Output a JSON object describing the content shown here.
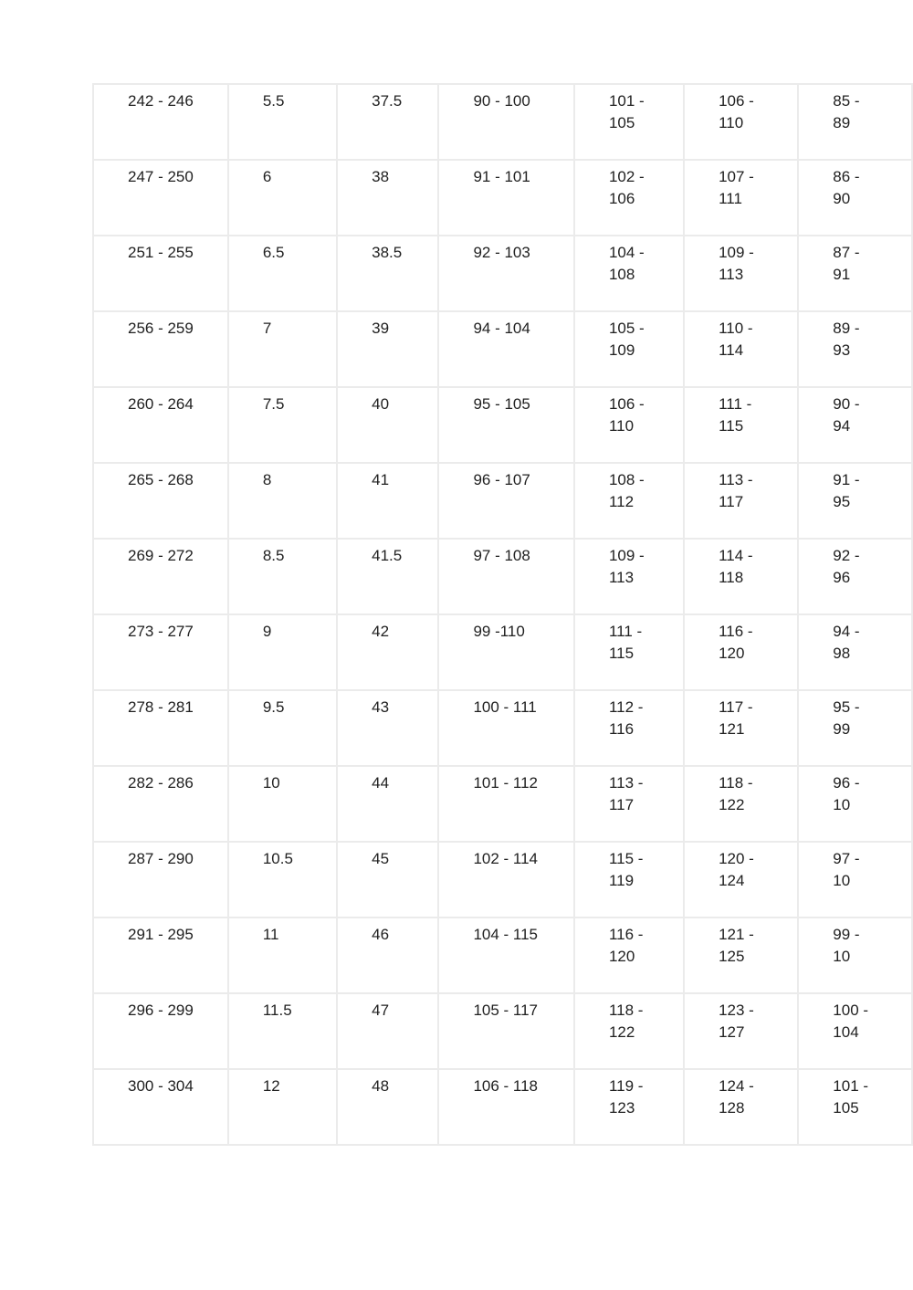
{
  "page": {
    "background_color": "#ffffff"
  },
  "table": {
    "border_color": "#ebebeb",
    "text_color": "#212121",
    "column_count": 7,
    "note_column7_clipped": "rightmost column is cut off by the viewport edge",
    "rows": [
      [
        "242 - 246",
        "5.5",
        "37.5",
        "90 - 100",
        "101 -\n105",
        "106 -\n110",
        "85 - 89"
      ],
      [
        "247 - 250",
        "6",
        "38",
        "91 - 101",
        "102 -\n106",
        "107 -\n111",
        "86 - 90"
      ],
      [
        "251 - 255",
        "6.5",
        "38.5",
        "92 - 103",
        "104 -\n108",
        "109 -\n113",
        "87 - 91"
      ],
      [
        "256 - 259",
        "7",
        "39",
        "94 - 104",
        "105 -\n109",
        "110 -\n114",
        "89 - 93"
      ],
      [
        "260 - 264",
        "7.5",
        "40",
        "95 - 105",
        "106 -\n110",
        "111 -\n115",
        "90 - 94"
      ],
      [
        "265 - 268",
        "8",
        "41",
        "96 - 107",
        "108 -\n112",
        "113 -\n117",
        "91 - 95"
      ],
      [
        "269 - 272",
        "8.5",
        "41.5",
        "97 - 108",
        "109 -\n113",
        "114 -\n118",
        "92 - 96"
      ],
      [
        "273 - 277",
        "9",
        "42",
        "99 -110",
        "111 -\n115",
        "116 -\n120",
        "94 - 98"
      ],
      [
        "278 - 281",
        "9.5",
        "43",
        "100 - 111",
        "112 -\n116",
        "117 -\n121",
        "95 - 99"
      ],
      [
        "282 - 286",
        "10",
        "44",
        "101 - 112",
        "113 -\n117",
        "118 -\n122",
        "96 - 10"
      ],
      [
        "287 - 290",
        "10.5",
        "45",
        "102 - 114",
        "115 -\n119",
        "120 -\n124",
        "97 - 10"
      ],
      [
        "291 - 295",
        "11",
        "46",
        "104 - 115",
        "116 -\n120",
        "121 -\n125",
        "99 - 10"
      ],
      [
        "296 - 299",
        "11.5",
        "47",
        "105 - 117",
        "118 -\n122",
        "123 -\n127",
        "100 -\n104"
      ],
      [
        "300 - 304",
        "12",
        "48",
        "106 - 118",
        "119 -\n123",
        "124 -\n128",
        "101 -\n105"
      ]
    ]
  }
}
